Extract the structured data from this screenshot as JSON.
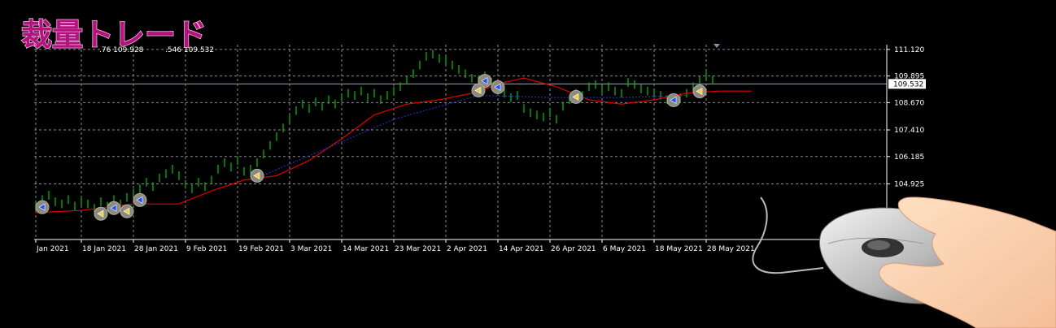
{
  "title": "裁量トレード",
  "header_text": [
    ".76 109.928",
    ".546 109.532"
  ],
  "chart_data": {
    "type": "ohlc",
    "bars": {
      "color": "#00c800",
      "high": [
        104.1,
        104.4,
        104.6,
        104.3,
        104.2,
        104.4,
        104.1,
        104.3,
        104.2,
        104.0,
        104.3,
        104.1,
        104.4,
        104.2,
        104.5,
        104.7,
        104.9,
        105.2,
        105.0,
        105.4,
        105.6,
        105.8,
        105.5,
        105.1,
        104.9,
        105.2,
        105.0,
        105.3,
        105.8,
        106.1,
        105.9,
        106.2,
        105.7,
        105.8,
        106.1,
        106.5,
        106.9,
        107.3,
        107.7,
        108.1,
        108.5,
        108.8,
        108.6,
        108.9,
        108.7,
        109.0,
        108.8,
        109.1,
        109.3,
        109.2,
        109.4,
        109.1,
        109.3,
        109.0,
        109.2,
        109.4,
        109.6,
        109.9,
        110.2,
        110.6,
        111.0,
        111.1,
        110.9,
        110.8,
        110.6,
        110.4,
        110.2,
        110.0,
        109.9,
        110.1,
        109.8,
        109.4,
        109.3,
        109.1,
        109.2,
        108.6,
        108.4,
        108.3,
        108.2,
        108.4,
        108.1,
        108.7,
        109.0,
        109.3,
        109.2,
        109.6,
        109.7,
        109.5,
        109.6,
        109.4,
        109.3,
        109.8,
        109.7,
        109.5,
        109.4,
        109.3,
        109.2,
        109.0,
        108.9,
        109.1,
        109.3,
        109.6,
        109.9,
        110.1,
        109.9
      ],
      "low": [
        103.7,
        104.0,
        104.2,
        103.9,
        103.8,
        104.0,
        103.7,
        103.9,
        103.8,
        103.6,
        103.9,
        103.7,
        104.0,
        103.8,
        104.1,
        104.3,
        104.5,
        104.8,
        104.6,
        105.0,
        105.2,
        105.4,
        105.1,
        104.7,
        104.5,
        104.8,
        104.6,
        104.9,
        105.4,
        105.7,
        105.5,
        105.8,
        105.3,
        105.4,
        105.7,
        106.1,
        106.5,
        106.9,
        107.3,
        107.7,
        108.1,
        108.4,
        108.2,
        108.5,
        108.3,
        108.6,
        108.4,
        108.7,
        108.9,
        108.8,
        109.0,
        108.7,
        108.9,
        108.6,
        108.8,
        109.0,
        109.2,
        109.5,
        109.8,
        110.2,
        110.6,
        110.7,
        110.5,
        110.4,
        110.2,
        110.0,
        109.8,
        109.6,
        109.5,
        109.7,
        109.4,
        109.0,
        108.9,
        108.7,
        108.8,
        108.2,
        108.0,
        107.9,
        107.8,
        108.0,
        107.7,
        108.3,
        108.6,
        108.9,
        108.8,
        109.2,
        109.3,
        109.1,
        109.2,
        109.0,
        108.9,
        109.4,
        109.3,
        109.1,
        109.0,
        108.9,
        108.8,
        108.6,
        108.5,
        108.7,
        108.9,
        109.2,
        109.5,
        109.7,
        109.5
      ]
    },
    "series": [
      {
        "color": "#e00000",
        "style": "solid",
        "x": [
          0,
          7,
          15,
          22,
          27,
          32,
          37,
          42,
          47,
          52,
          57,
          62,
          67,
          72,
          75,
          80,
          85,
          90,
          95,
          100,
          105,
          110
        ],
        "values": [
          103.6,
          103.7,
          104.0,
          104.0,
          104.6,
          105.1,
          105.3,
          106.0,
          107.0,
          108.1,
          108.6,
          108.8,
          109.1,
          109.6,
          109.8,
          109.4,
          108.8,
          108.6,
          108.8,
          109.1,
          109.2,
          109.2
        ]
      },
      {
        "color": "#2030c0",
        "style": "dotted",
        "x": [
          34,
          45,
          55,
          68,
          80,
          90,
          100
        ],
        "values": [
          105.2,
          106.6,
          107.9,
          109.0,
          108.9,
          108.9,
          109.0
        ]
      }
    ],
    "trades": [
      {
        "index": 1,
        "price": 103.85
      },
      {
        "index": 10,
        "price": 103.55
      },
      {
        "index": 12,
        "price": 103.81
      },
      {
        "index": 14,
        "price": 103.66
      },
      {
        "index": 16,
        "price": 104.18
      },
      {
        "index": 34,
        "price": 105.3
      },
      {
        "index": 69,
        "price": 109.67
      },
      {
        "index": 68,
        "price": 109.23
      },
      {
        "index": 71,
        "price": 109.38
      },
      {
        "index": 83,
        "price": 108.93
      },
      {
        "index": 98,
        "price": 108.78
      },
      {
        "index": 102,
        "price": 109.19
      }
    ],
    "current_price": 109.532,
    "xlim": [
      -0.25,
      130.5
    ],
    "ylim": [
      102.36,
      111.34
    ],
    "yticks": [
      104.925,
      106.185,
      {
        "value": 107.41,
        "label": "107.410"
      },
      {
        "value": 108.67,
        "label": "108.670"
      },
      109.895,
      {
        "value": 111.12,
        "label": "111.120"
      }
    ],
    "xticks": [
      {
        "value": 0,
        "label": "Jan 2021"
      },
      {
        "value": 7,
        "label": "18 Jan 2021"
      },
      {
        "value": 15,
        "label": "28 Jan 2021"
      },
      {
        "value": 23,
        "label": "9 Feb 2021"
      },
      {
        "value": 31,
        "label": "19 Feb 2021"
      },
      {
        "value": 39,
        "label": "3 Mar 2021"
      },
      {
        "value": 47,
        "label": "14 Mar 2021"
      },
      {
        "value": 55,
        "label": "23 Mar 2021"
      },
      {
        "value": 63,
        "label": "2 Apr 2021"
      },
      {
        "value": 71,
        "label": "14 Apr 2021"
      },
      {
        "value": 79,
        "label": "26 Apr 2021"
      },
      {
        "value": 87,
        "label": "6 May 2021"
      },
      {
        "value": 95,
        "label": "18 May 2021"
      },
      {
        "value": 103,
        "label": "28 May 2021"
      }
    ],
    "grid": true
  }
}
